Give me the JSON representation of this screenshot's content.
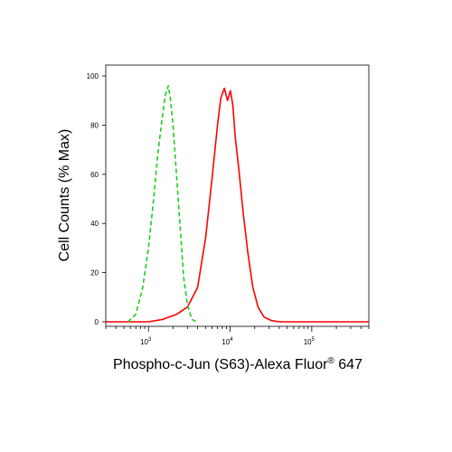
{
  "chart_data": {
    "type": "line",
    "title": "",
    "xlabel_main": "Phospho-c-Jun (S63)-Alexa Fluor",
    "xlabel_sup": "®",
    "xlabel_tail": " 647",
    "ylabel": "Cell Counts (% Max)",
    "x_scale": "log",
    "xlim": [
      300,
      500000
    ],
    "ylim": [
      0,
      100
    ],
    "grid": false,
    "legend": "none",
    "y_ticks": [
      0,
      20,
      40,
      60,
      80,
      100
    ],
    "x_tick_labels": [
      {
        "base": "10",
        "exp": "3",
        "value": 1000
      },
      {
        "base": "10",
        "exp": "4",
        "value": 10000
      },
      {
        "base": "10",
        "exp": "5",
        "value": 100000
      }
    ],
    "series": [
      {
        "color": "#ff0000",
        "style": "solid",
        "x": [
          300,
          500,
          1000,
          1500,
          2200,
          3000,
          4000,
          5000,
          6000,
          7000,
          7700,
          8500,
          9300,
          10100,
          10800,
          11500,
          12800,
          14500,
          16500,
          19000,
          22000,
          26000,
          32000,
          40000,
          60000,
          100000,
          500000
        ],
        "y": [
          0,
          0,
          0,
          1,
          3,
          6,
          14,
          34,
          58,
          80,
          91,
          95,
          90,
          94,
          88,
          76,
          62,
          44,
          28,
          14,
          6,
          2,
          0.5,
          0,
          0,
          0,
          0
        ]
      },
      {
        "color": "#22cc22",
        "style": "dashed",
        "x": [
          560,
          700,
          850,
          1000,
          1150,
          1300,
          1450,
          1600,
          1750,
          1850,
          2000,
          2200,
          2450,
          2700,
          3000,
          3400,
          3900
        ],
        "y": [
          0,
          3,
          14,
          30,
          49,
          68,
          81,
          92,
          96,
          91,
          80,
          60,
          38,
          18,
          7,
          1,
          0
        ]
      }
    ]
  }
}
